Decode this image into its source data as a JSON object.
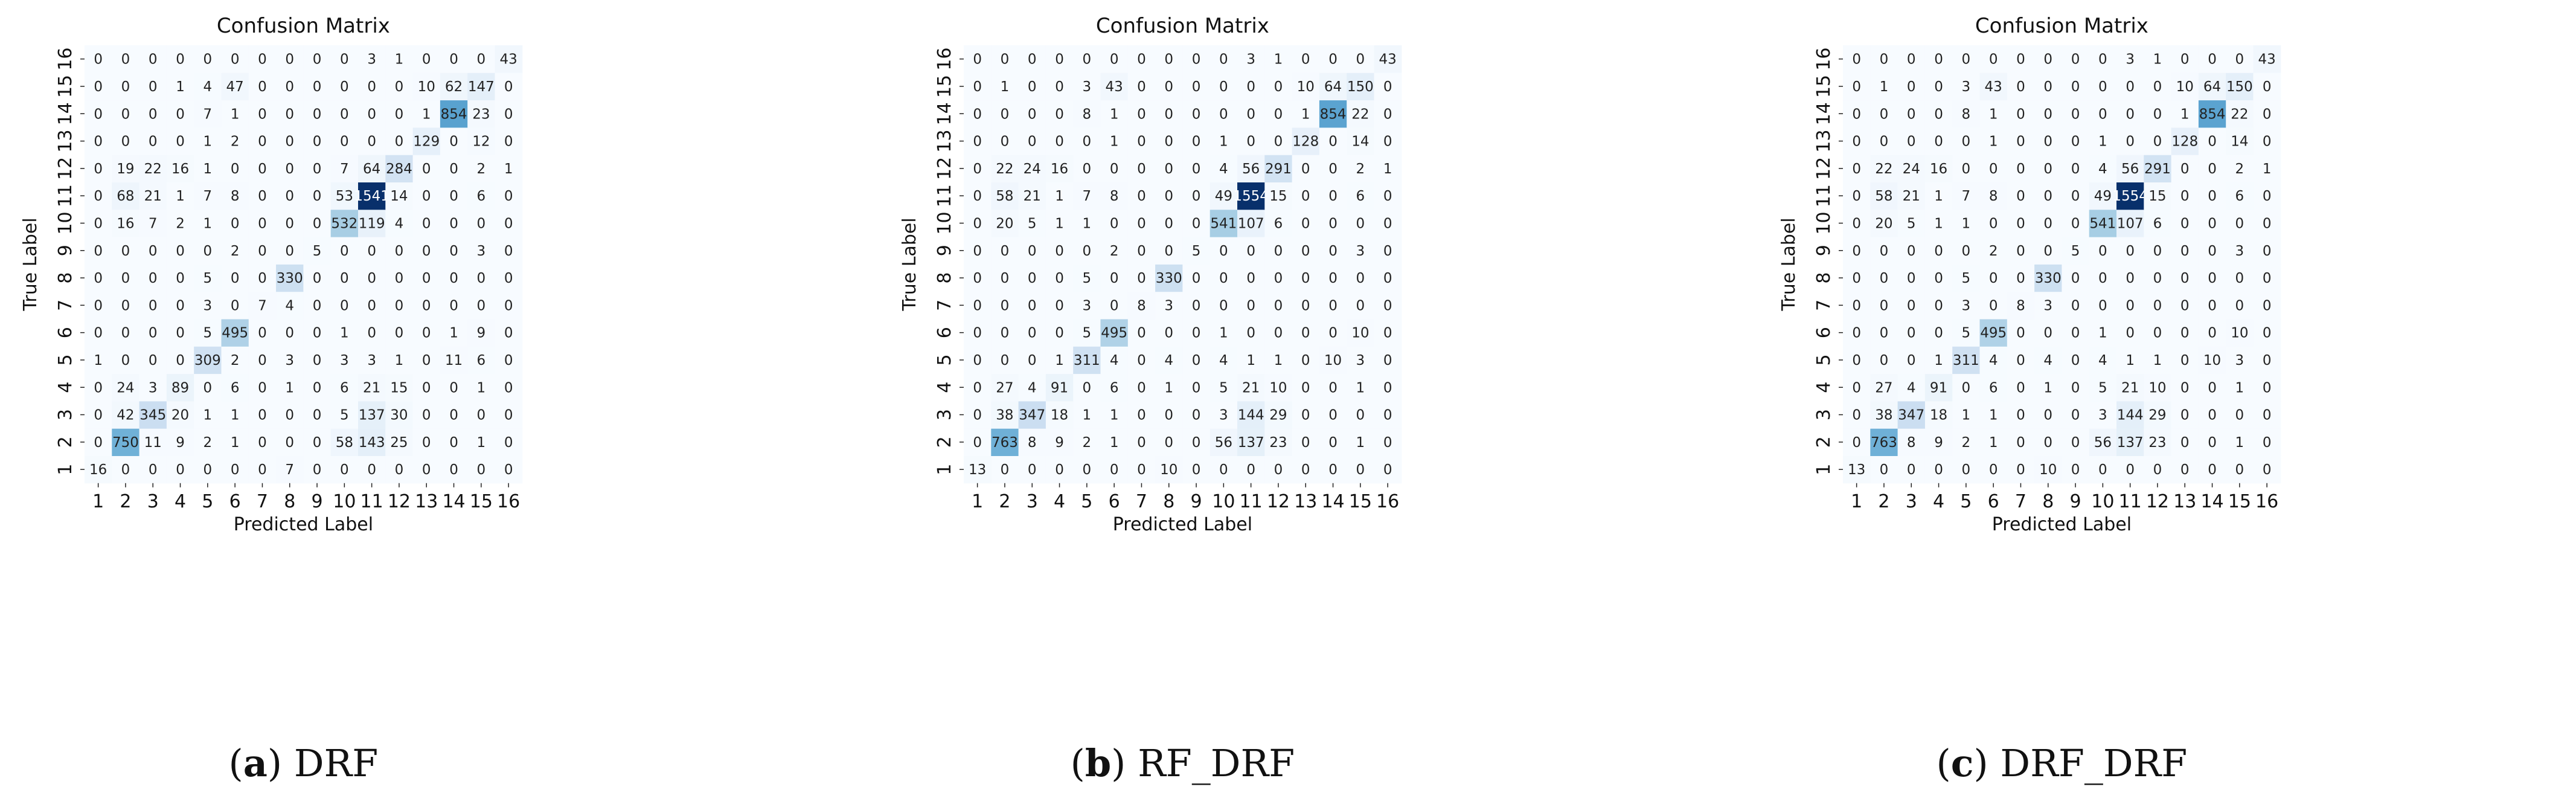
{
  "colors": {
    "low": "#f7fbff",
    "high": "#08306b",
    "text_dark": "#222222",
    "text_light": "#ffffff"
  },
  "chart_data": [
    {
      "type": "heatmap",
      "title": "Confusion Matrix",
      "xlabel": "Predicted Label",
      "ylabel": "True Label",
      "caption_letter": "(a)",
      "caption_name": "DRF",
      "x_categories": [
        "1",
        "2",
        "3",
        "4",
        "5",
        "6",
        "7",
        "8",
        "9",
        "10",
        "11",
        "12",
        "13",
        "14",
        "15",
        "16"
      ],
      "y_categories": [
        "1",
        "2",
        "3",
        "4",
        "5",
        "6",
        "7",
        "8",
        "9",
        "10",
        "11",
        "12",
        "13",
        "14",
        "15",
        "16"
      ],
      "matrix": [
        [
          16,
          0,
          0,
          0,
          0,
          0,
          0,
          7,
          0,
          0,
          0,
          0,
          0,
          0,
          0,
          0
        ],
        [
          0,
          750,
          11,
          9,
          2,
          1,
          0,
          0,
          0,
          58,
          143,
          25,
          0,
          0,
          1,
          0
        ],
        [
          0,
          42,
          345,
          20,
          1,
          1,
          0,
          0,
          0,
          5,
          137,
          30,
          0,
          0,
          0,
          0
        ],
        [
          0,
          24,
          3,
          89,
          0,
          6,
          0,
          1,
          0,
          6,
          21,
          15,
          0,
          0,
          1,
          0
        ],
        [
          1,
          0,
          0,
          0,
          309,
          2,
          0,
          3,
          0,
          3,
          3,
          1,
          0,
          11,
          6,
          0
        ],
        [
          0,
          0,
          0,
          0,
          5,
          495,
          0,
          0,
          0,
          1,
          0,
          0,
          0,
          1,
          9,
          0
        ],
        [
          0,
          0,
          0,
          0,
          3,
          0,
          7,
          4,
          0,
          0,
          0,
          0,
          0,
          0,
          0,
          0
        ],
        [
          0,
          0,
          0,
          0,
          5,
          0,
          0,
          330,
          0,
          0,
          0,
          0,
          0,
          0,
          0,
          0
        ],
        [
          0,
          0,
          0,
          0,
          0,
          2,
          0,
          0,
          5,
          0,
          0,
          0,
          0,
          0,
          3,
          0
        ],
        [
          0,
          16,
          7,
          2,
          1,
          0,
          0,
          0,
          0,
          532,
          119,
          4,
          0,
          0,
          0,
          0
        ],
        [
          0,
          68,
          21,
          1,
          7,
          8,
          0,
          0,
          0,
          53,
          1541,
          14,
          0,
          0,
          6,
          0
        ],
        [
          0,
          19,
          22,
          16,
          1,
          0,
          0,
          0,
          0,
          7,
          64,
          284,
          0,
          0,
          2,
          1
        ],
        [
          0,
          0,
          0,
          0,
          1,
          2,
          0,
          0,
          0,
          0,
          0,
          0,
          129,
          0,
          12,
          0
        ],
        [
          0,
          0,
          0,
          0,
          7,
          1,
          0,
          0,
          0,
          0,
          0,
          0,
          1,
          854,
          23,
          0
        ],
        [
          0,
          0,
          0,
          1,
          4,
          47,
          0,
          0,
          0,
          0,
          0,
          0,
          10,
          62,
          147,
          0
        ],
        [
          0,
          0,
          0,
          0,
          0,
          0,
          0,
          0,
          0,
          0,
          3,
          1,
          0,
          0,
          0,
          43
        ]
      ]
    },
    {
      "type": "heatmap",
      "title": "Confusion Matrix",
      "xlabel": "Predicted Label",
      "ylabel": "True Label",
      "caption_letter": "(b)",
      "caption_name": "RF_DRF",
      "x_categories": [
        "1",
        "2",
        "3",
        "4",
        "5",
        "6",
        "7",
        "8",
        "9",
        "10",
        "11",
        "12",
        "13",
        "14",
        "15",
        "16"
      ],
      "y_categories": [
        "1",
        "2",
        "3",
        "4",
        "5",
        "6",
        "7",
        "8",
        "9",
        "10",
        "11",
        "12",
        "13",
        "14",
        "15",
        "16"
      ],
      "matrix": [
        [
          13,
          0,
          0,
          0,
          0,
          0,
          0,
          10,
          0,
          0,
          0,
          0,
          0,
          0,
          0,
          0
        ],
        [
          0,
          763,
          8,
          9,
          2,
          1,
          0,
          0,
          0,
          56,
          137,
          23,
          0,
          0,
          1,
          0
        ],
        [
          0,
          38,
          347,
          18,
          1,
          1,
          0,
          0,
          0,
          3,
          144,
          29,
          0,
          0,
          0,
          0
        ],
        [
          0,
          27,
          4,
          91,
          0,
          6,
          0,
          1,
          0,
          5,
          21,
          10,
          0,
          0,
          1,
          0
        ],
        [
          0,
          0,
          0,
          1,
          311,
          4,
          0,
          4,
          0,
          4,
          1,
          1,
          0,
          10,
          3,
          0
        ],
        [
          0,
          0,
          0,
          0,
          5,
          495,
          0,
          0,
          0,
          1,
          0,
          0,
          0,
          0,
          10,
          0
        ],
        [
          0,
          0,
          0,
          0,
          3,
          0,
          8,
          3,
          0,
          0,
          0,
          0,
          0,
          0,
          0,
          0
        ],
        [
          0,
          0,
          0,
          0,
          5,
          0,
          0,
          330,
          0,
          0,
          0,
          0,
          0,
          0,
          0,
          0
        ],
        [
          0,
          0,
          0,
          0,
          0,
          2,
          0,
          0,
          5,
          0,
          0,
          0,
          0,
          0,
          3,
          0
        ],
        [
          0,
          20,
          5,
          1,
          1,
          0,
          0,
          0,
          0,
          541,
          107,
          6,
          0,
          0,
          0,
          0
        ],
        [
          0,
          58,
          21,
          1,
          7,
          8,
          0,
          0,
          0,
          49,
          1554,
          15,
          0,
          0,
          6,
          0
        ],
        [
          0,
          22,
          24,
          16,
          0,
          0,
          0,
          0,
          0,
          4,
          56,
          291,
          0,
          0,
          2,
          1
        ],
        [
          0,
          0,
          0,
          0,
          0,
          1,
          0,
          0,
          0,
          1,
          0,
          0,
          128,
          0,
          14,
          0
        ],
        [
          0,
          0,
          0,
          0,
          8,
          1,
          0,
          0,
          0,
          0,
          0,
          0,
          1,
          854,
          22,
          0
        ],
        [
          0,
          1,
          0,
          0,
          3,
          43,
          0,
          0,
          0,
          0,
          0,
          0,
          10,
          64,
          150,
          0
        ],
        [
          0,
          0,
          0,
          0,
          0,
          0,
          0,
          0,
          0,
          0,
          3,
          1,
          0,
          0,
          0,
          43
        ]
      ]
    },
    {
      "type": "heatmap",
      "title": "Confusion Matrix",
      "xlabel": "Predicted Label",
      "ylabel": "True Label",
      "caption_letter": "(c)",
      "caption_name": "DRF_DRF",
      "x_categories": [
        "1",
        "2",
        "3",
        "4",
        "5",
        "6",
        "7",
        "8",
        "9",
        "10",
        "11",
        "12",
        "13",
        "14",
        "15",
        "16"
      ],
      "y_categories": [
        "1",
        "2",
        "3",
        "4",
        "5",
        "6",
        "7",
        "8",
        "9",
        "10",
        "11",
        "12",
        "13",
        "14",
        "15",
        "16"
      ],
      "matrix": [
        [
          13,
          0,
          0,
          0,
          0,
          0,
          0,
          10,
          0,
          0,
          0,
          0,
          0,
          0,
          0,
          0
        ],
        [
          0,
          763,
          8,
          9,
          2,
          1,
          0,
          0,
          0,
          56,
          137,
          23,
          0,
          0,
          1,
          0
        ],
        [
          0,
          38,
          347,
          18,
          1,
          1,
          0,
          0,
          0,
          3,
          144,
          29,
          0,
          0,
          0,
          0
        ],
        [
          0,
          27,
          4,
          91,
          0,
          6,
          0,
          1,
          0,
          5,
          21,
          10,
          0,
          0,
          1,
          0
        ],
        [
          0,
          0,
          0,
          1,
          311,
          4,
          0,
          4,
          0,
          4,
          1,
          1,
          0,
          10,
          3,
          0
        ],
        [
          0,
          0,
          0,
          0,
          5,
          495,
          0,
          0,
          0,
          1,
          0,
          0,
          0,
          0,
          10,
          0
        ],
        [
          0,
          0,
          0,
          0,
          3,
          0,
          8,
          3,
          0,
          0,
          0,
          0,
          0,
          0,
          0,
          0
        ],
        [
          0,
          0,
          0,
          0,
          5,
          0,
          0,
          330,
          0,
          0,
          0,
          0,
          0,
          0,
          0,
          0
        ],
        [
          0,
          0,
          0,
          0,
          0,
          2,
          0,
          0,
          5,
          0,
          0,
          0,
          0,
          0,
          3,
          0
        ],
        [
          0,
          20,
          5,
          1,
          1,
          0,
          0,
          0,
          0,
          541,
          107,
          6,
          0,
          0,
          0,
          0
        ],
        [
          0,
          58,
          21,
          1,
          7,
          8,
          0,
          0,
          0,
          49,
          1554,
          15,
          0,
          0,
          6,
          0
        ],
        [
          0,
          22,
          24,
          16,
          0,
          0,
          0,
          0,
          0,
          4,
          56,
          291,
          0,
          0,
          2,
          1
        ],
        [
          0,
          0,
          0,
          0,
          0,
          1,
          0,
          0,
          0,
          1,
          0,
          0,
          128,
          0,
          14,
          0
        ],
        [
          0,
          0,
          0,
          0,
          8,
          1,
          0,
          0,
          0,
          0,
          0,
          0,
          1,
          854,
          22,
          0
        ],
        [
          0,
          1,
          0,
          0,
          3,
          43,
          0,
          0,
          0,
          0,
          0,
          0,
          10,
          64,
          150,
          0
        ],
        [
          0,
          0,
          0,
          0,
          0,
          0,
          0,
          0,
          0,
          0,
          3,
          1,
          0,
          0,
          0,
          43
        ]
      ]
    }
  ]
}
